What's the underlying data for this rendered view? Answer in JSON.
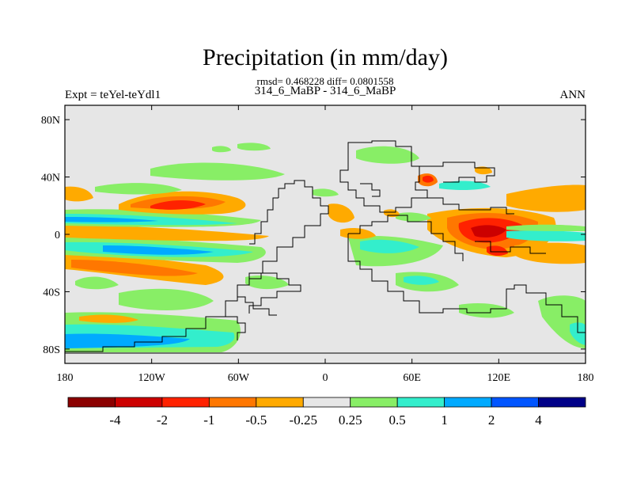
{
  "chart_data": {
    "type": "heatmap",
    "title": "Precipitation (in mm/day)",
    "stats_line": "rmsd= 0.468228 diff= 0.0801558",
    "subtitle": "314_6_MaBP - 314_6_MaBP",
    "left_label": "Expt = teYel-teYdl1",
    "right_label": "ANN",
    "x_ticks": [
      "180",
      "120W",
      "60W",
      "0",
      "60E",
      "120E",
      "180"
    ],
    "y_ticks": [
      "80N",
      "40N",
      "0",
      "40S",
      "80S"
    ],
    "xlim": [
      -180,
      180
    ],
    "ylim": [
      -90,
      90
    ],
    "colorbar": {
      "labels": [
        "-4",
        "-2",
        "-1",
        "-0.5",
        "-0.25",
        "0.25",
        "0.5",
        "1",
        "2",
        "4"
      ],
      "colors": [
        "#8b0000",
        "#cc0000",
        "#ff2200",
        "#ff7700",
        "#ffaa00",
        "#e6e6e6",
        "#88ee66",
        "#33eecc",
        "#00aaff",
        "#0055ff",
        "#000088"
      ]
    }
  }
}
